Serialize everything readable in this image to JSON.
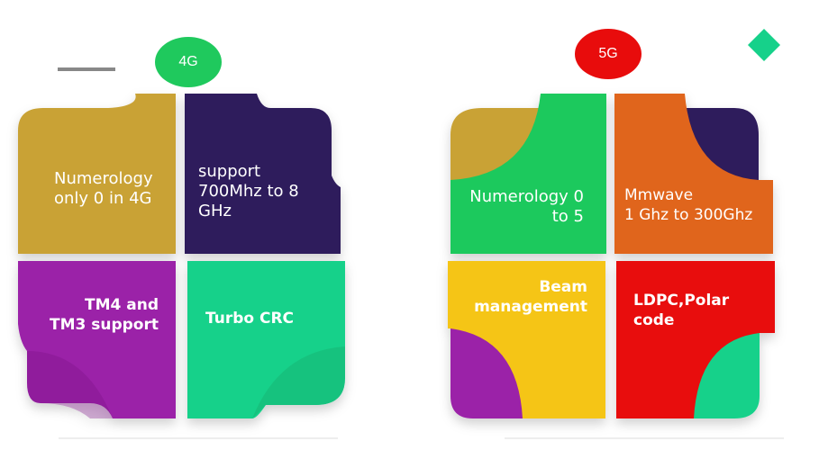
{
  "colors": {
    "olive": "#c9a234",
    "indigo": "#2e1a5c",
    "purple": "#9b22a8",
    "teal": "#16d18a",
    "green": "#1fc95d",
    "orange": "#e0651c",
    "yellow": "#f5c518",
    "red": "#e80c0c",
    "pill_4g": "#1fc95d",
    "pill_5g": "#e80c0c",
    "diamond": "#16d18a"
  },
  "left_panel": {
    "badge": "4G",
    "tiles": {
      "top_left": "Numerology\nonly 0 in 4G",
      "top_right": "support\n700Mhz to 8\nGHz",
      "bottom_left": "TM4 and\nTM3 support",
      "bottom_right": "Turbo CRC"
    }
  },
  "right_panel": {
    "badge": "5G",
    "tiles": {
      "top_left": "Numerology 0\nto 5",
      "top_right": "Mmwave\n1 Ghz to 300Ghz",
      "bottom_left": "Beam\nmanagement",
      "bottom_right": "LDPC,Polar\ncode"
    }
  }
}
